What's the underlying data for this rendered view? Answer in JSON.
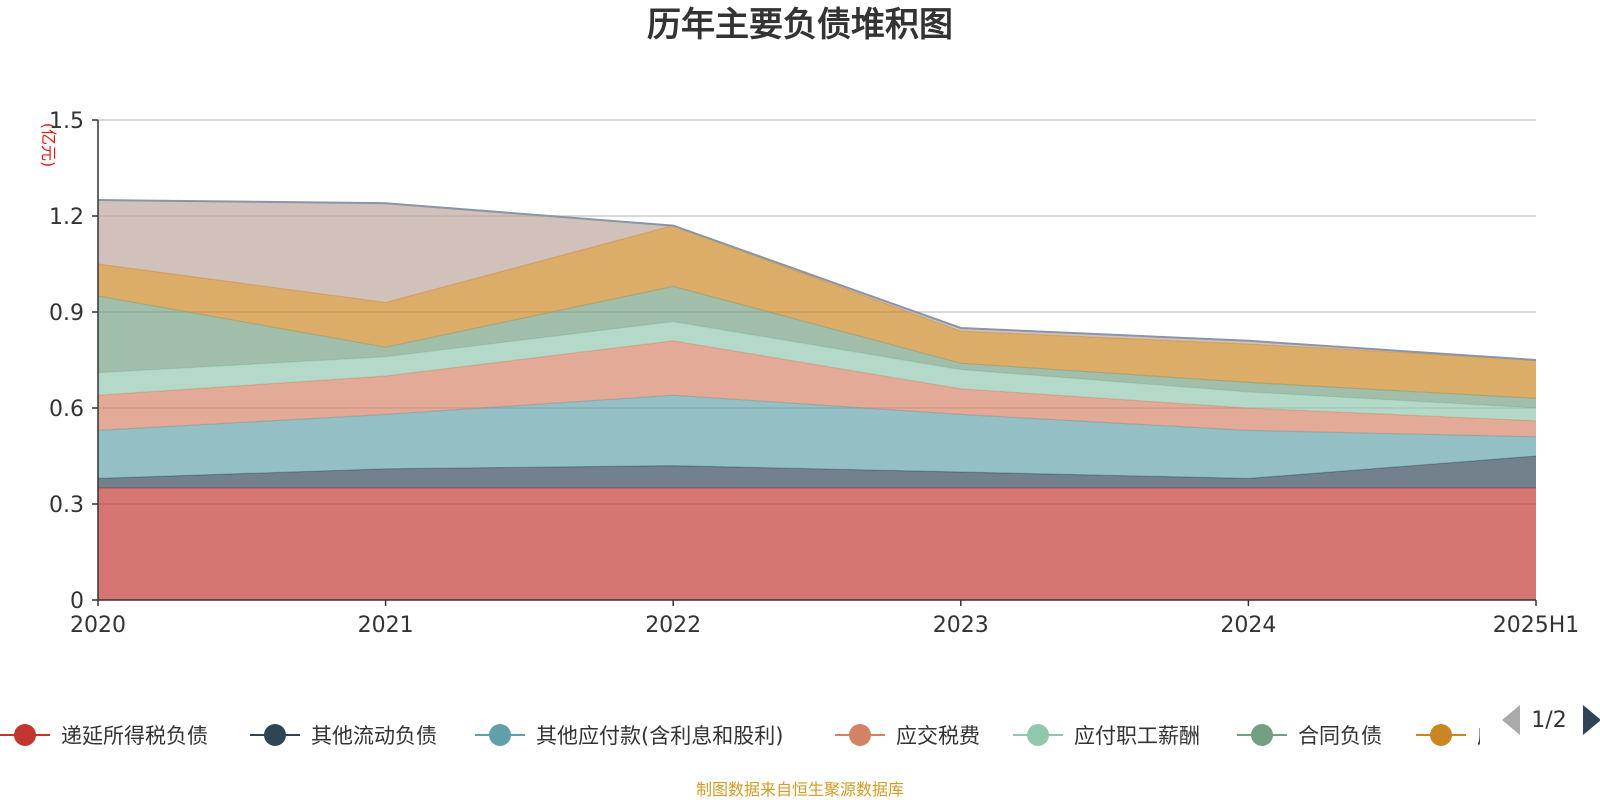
{
  "chart_data": {
    "type": "area",
    "stacked": true,
    "title": "历年主要负债堆积图",
    "unit_label": "(亿元)",
    "categories": [
      "2020",
      "2021",
      "2022",
      "2023",
      "2024",
      "2025H1"
    ],
    "ylim": [
      0,
      1.5
    ],
    "yticks": [
      "0",
      "0.3",
      "0.6",
      "0.9",
      "1.2",
      "1.5"
    ],
    "grid": true,
    "legend_position": "bottom",
    "series": [
      {
        "name": "递延所得税负债",
        "color": "#c23531",
        "values": [
          0.35,
          0.35,
          0.35,
          0.35,
          0.35,
          0.35
        ]
      },
      {
        "name": "其他流动负债",
        "color": "#2f4554",
        "values": [
          0.03,
          0.06,
          0.07,
          0.05,
          0.03,
          0.1
        ]
      },
      {
        "name": "其他应付款(含利息和股利)",
        "color": "#61a0a8",
        "values": [
          0.15,
          0.17,
          0.22,
          0.18,
          0.15,
          0.06
        ]
      },
      {
        "name": "应交税费",
        "color": "#d48265",
        "values": [
          0.11,
          0.12,
          0.17,
          0.08,
          0.07,
          0.05
        ]
      },
      {
        "name": "应付职工薪酬",
        "color": "#91c7ae",
        "values": [
          0.07,
          0.06,
          0.06,
          0.06,
          0.05,
          0.04
        ]
      },
      {
        "name": "合同负债",
        "color": "#749f83",
        "values": [
          0.24,
          0.03,
          0.11,
          0.02,
          0.03,
          0.03
        ]
      },
      {
        "name": "应付账款",
        "color": "#ca8622",
        "values": [
          0.1,
          0.14,
          0.19,
          0.1,
          0.12,
          0.12
        ]
      },
      {
        "name": "",
        "color": "#bda29a",
        "values": [
          0.2,
          0.31,
          0.0,
          0.01,
          0.01,
          0.0
        ]
      }
    ]
  },
  "legend": {
    "items": [
      "递延所得税负债",
      "其他流动负债",
      "其他应付款(含利息和股利)",
      "应交税费",
      "应付职工薪酬",
      "合同负债"
    ],
    "truncated_item": "应",
    "page_indicator": "1/2"
  },
  "footer": {
    "source": "制图数据来自恒生聚源数据库"
  }
}
